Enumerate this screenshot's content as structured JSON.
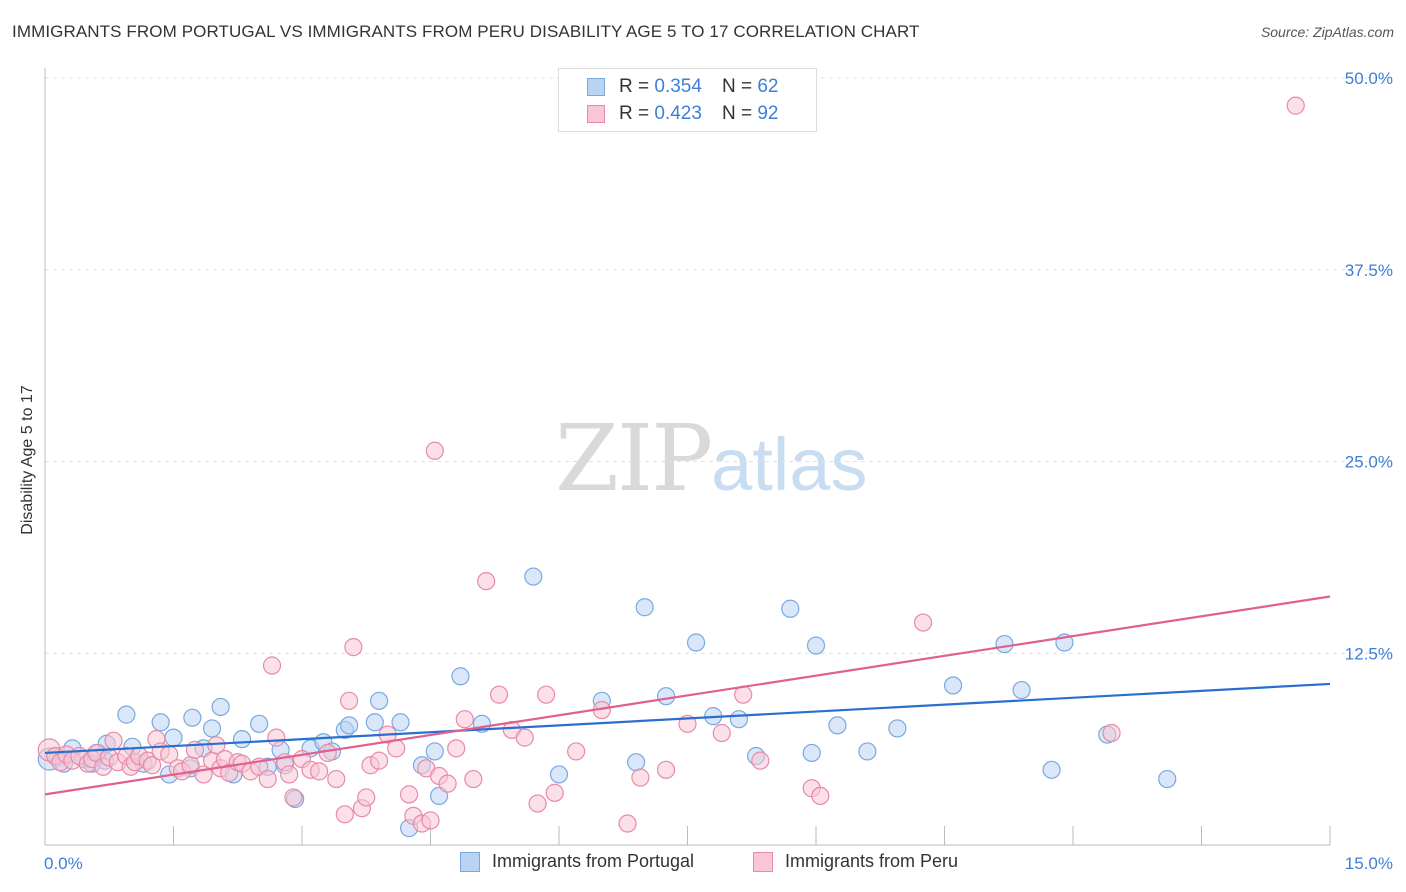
{
  "title": "IMMIGRANTS FROM PORTUGAL VS IMMIGRANTS FROM PERU DISABILITY AGE 5 TO 17 CORRELATION CHART",
  "source": "Source: ZipAtlas.com",
  "watermark": {
    "zip": "ZIP",
    "atlas": "atlas"
  },
  "legend": [
    {
      "r_label": "R =",
      "r_value": "0.354",
      "n_label": "N =",
      "n_value": "62"
    },
    {
      "r_label": "R =",
      "r_value": "0.423",
      "n_label": "N =",
      "n_value": "92"
    }
  ],
  "colors": {
    "portugal_fill": "#b9d3f2",
    "portugal_stroke": "#7aa8e0",
    "portugal_line": "#2a6fcf",
    "peru_fill": "#f8c6d6",
    "peru_stroke": "#e88aa8",
    "peru_line": "#e0608e",
    "tick_label": "#3d7fd6",
    "grid": "#e0e0e0"
  },
  "chart_data": {
    "type": "scatter",
    "title": "IMMIGRANTS FROM PORTUGAL VS IMMIGRANTS FROM PERU DISABILITY AGE 5 TO 17 CORRELATION CHART",
    "xlabel": "",
    "ylabel": "Disability Age 5 to 17",
    "xlim": [
      0,
      15
    ],
    "ylim": [
      0,
      50
    ],
    "x_tick_labels": [
      "0.0%",
      "15.0%"
    ],
    "y_ticks": [
      12.5,
      25.0,
      37.5,
      50.0
    ],
    "y_tick_labels": [
      "12.5%",
      "25.0%",
      "37.5%",
      "50.0%"
    ],
    "grid": true,
    "legend_placement": "top-center",
    "series": [
      {
        "name": "Immigrants from Portugal",
        "trend": [
          [
            0,
            6.0
          ],
          [
            15,
            10.5
          ]
        ],
        "points": [
          [
            0.05,
            5.6
          ],
          [
            0.15,
            5.7
          ],
          [
            0.22,
            5.3
          ],
          [
            0.32,
            6.3
          ],
          [
            0.45,
            5.6
          ],
          [
            0.55,
            5.3
          ],
          [
            0.62,
            6.0
          ],
          [
            0.7,
            5.5
          ],
          [
            0.72,
            6.6
          ],
          [
            0.95,
            8.5
          ],
          [
            1.02,
            6.4
          ],
          [
            1.15,
            5.3
          ],
          [
            1.35,
            8.0
          ],
          [
            1.45,
            4.6
          ],
          [
            1.5,
            7.0
          ],
          [
            1.7,
            5.0
          ],
          [
            1.72,
            8.3
          ],
          [
            1.85,
            6.3
          ],
          [
            1.95,
            7.6
          ],
          [
            2.05,
            9.0
          ],
          [
            2.2,
            4.6
          ],
          [
            2.3,
            6.9
          ],
          [
            2.5,
            7.9
          ],
          [
            2.6,
            5.1
          ],
          [
            2.75,
            6.2
          ],
          [
            2.8,
            5.2
          ],
          [
            2.92,
            3.0
          ],
          [
            3.1,
            6.3
          ],
          [
            3.25,
            6.7
          ],
          [
            3.35,
            6.1
          ],
          [
            3.5,
            7.5
          ],
          [
            3.55,
            7.8
          ],
          [
            3.85,
            8.0
          ],
          [
            3.9,
            9.4
          ],
          [
            4.15,
            8.0
          ],
          [
            4.25,
            1.1
          ],
          [
            4.4,
            5.2
          ],
          [
            4.55,
            6.1
          ],
          [
            4.6,
            3.2
          ],
          [
            4.85,
            11.0
          ],
          [
            5.1,
            7.9
          ],
          [
            5.7,
            17.5
          ],
          [
            6.0,
            4.6
          ],
          [
            6.5,
            9.4
          ],
          [
            6.9,
            5.4
          ],
          [
            7.0,
            15.5
          ],
          [
            7.25,
            9.7
          ],
          [
            7.6,
            13.2
          ],
          [
            7.8,
            8.4
          ],
          [
            8.1,
            8.2
          ],
          [
            8.3,
            5.8
          ],
          [
            8.7,
            15.4
          ],
          [
            8.95,
            6.0
          ],
          [
            9.0,
            13.0
          ],
          [
            9.25,
            7.8
          ],
          [
            9.6,
            6.1
          ],
          [
            9.95,
            7.6
          ],
          [
            10.6,
            10.4
          ],
          [
            11.2,
            13.1
          ],
          [
            11.4,
            10.1
          ],
          [
            11.75,
            4.9
          ],
          [
            11.9,
            13.2
          ],
          [
            12.4,
            7.2
          ],
          [
            13.1,
            4.3
          ]
        ]
      },
      {
        "name": "Immigrants from Peru",
        "trend": [
          [
            0,
            3.3
          ],
          [
            15,
            16.2
          ]
        ],
        "points": [
          [
            0.05,
            6.2
          ],
          [
            0.12,
            5.8
          ],
          [
            0.18,
            5.4
          ],
          [
            0.25,
            5.9
          ],
          [
            0.32,
            5.5
          ],
          [
            0.4,
            5.8
          ],
          [
            0.5,
            5.3
          ],
          [
            0.55,
            5.6
          ],
          [
            0.6,
            6.0
          ],
          [
            0.68,
            5.1
          ],
          [
            0.75,
            5.7
          ],
          [
            0.8,
            6.8
          ],
          [
            0.85,
            5.4
          ],
          [
            0.95,
            5.8
          ],
          [
            1.0,
            5.1
          ],
          [
            1.05,
            5.4
          ],
          [
            1.1,
            5.8
          ],
          [
            1.2,
            5.5
          ],
          [
            1.25,
            5.2
          ],
          [
            1.3,
            6.9
          ],
          [
            1.35,
            6.1
          ],
          [
            1.45,
            5.9
          ],
          [
            1.55,
            5.0
          ],
          [
            1.6,
            4.8
          ],
          [
            1.7,
            5.2
          ],
          [
            1.75,
            6.2
          ],
          [
            1.85,
            4.6
          ],
          [
            1.95,
            5.5
          ],
          [
            2.0,
            6.5
          ],
          [
            2.05,
            5.0
          ],
          [
            2.1,
            5.6
          ],
          [
            2.15,
            4.7
          ],
          [
            2.25,
            5.4
          ],
          [
            2.3,
            5.3
          ],
          [
            2.4,
            4.8
          ],
          [
            2.5,
            5.1
          ],
          [
            2.6,
            4.3
          ],
          [
            2.65,
            11.7
          ],
          [
            2.7,
            7.0
          ],
          [
            2.8,
            5.4
          ],
          [
            2.85,
            4.6
          ],
          [
            2.9,
            3.1
          ],
          [
            3.0,
            5.6
          ],
          [
            3.1,
            4.9
          ],
          [
            3.2,
            4.8
          ],
          [
            3.3,
            6.0
          ],
          [
            3.4,
            4.3
          ],
          [
            3.5,
            2.0
          ],
          [
            3.55,
            9.4
          ],
          [
            3.6,
            12.9
          ],
          [
            3.7,
            2.4
          ],
          [
            3.75,
            3.1
          ],
          [
            3.8,
            5.2
          ],
          [
            3.9,
            5.5
          ],
          [
            4.0,
            7.2
          ],
          [
            4.1,
            6.3
          ],
          [
            4.25,
            3.3
          ],
          [
            4.3,
            1.9
          ],
          [
            4.4,
            1.4
          ],
          [
            4.45,
            5.0
          ],
          [
            4.5,
            1.6
          ],
          [
            4.55,
            25.7
          ],
          [
            4.6,
            4.5
          ],
          [
            4.7,
            4.0
          ],
          [
            4.8,
            6.3
          ],
          [
            4.9,
            8.2
          ],
          [
            5.0,
            4.3
          ],
          [
            5.15,
            17.2
          ],
          [
            5.3,
            9.8
          ],
          [
            5.45,
            7.5
          ],
          [
            5.6,
            7.0
          ],
          [
            5.75,
            2.7
          ],
          [
            5.85,
            9.8
          ],
          [
            5.95,
            3.4
          ],
          [
            6.2,
            6.1
          ],
          [
            6.5,
            8.8
          ],
          [
            6.8,
            1.4
          ],
          [
            6.95,
            4.4
          ],
          [
            7.25,
            4.9
          ],
          [
            7.5,
            7.9
          ],
          [
            7.9,
            7.3
          ],
          [
            8.15,
            9.8
          ],
          [
            8.35,
            5.5
          ],
          [
            8.95,
            3.7
          ],
          [
            9.05,
            3.2
          ],
          [
            10.25,
            14.5
          ],
          [
            12.45,
            7.3
          ],
          [
            14.6,
            48.2
          ]
        ]
      }
    ]
  },
  "bottom_legend": [
    "Immigrants from Portugal",
    "Immigrants from Peru"
  ]
}
